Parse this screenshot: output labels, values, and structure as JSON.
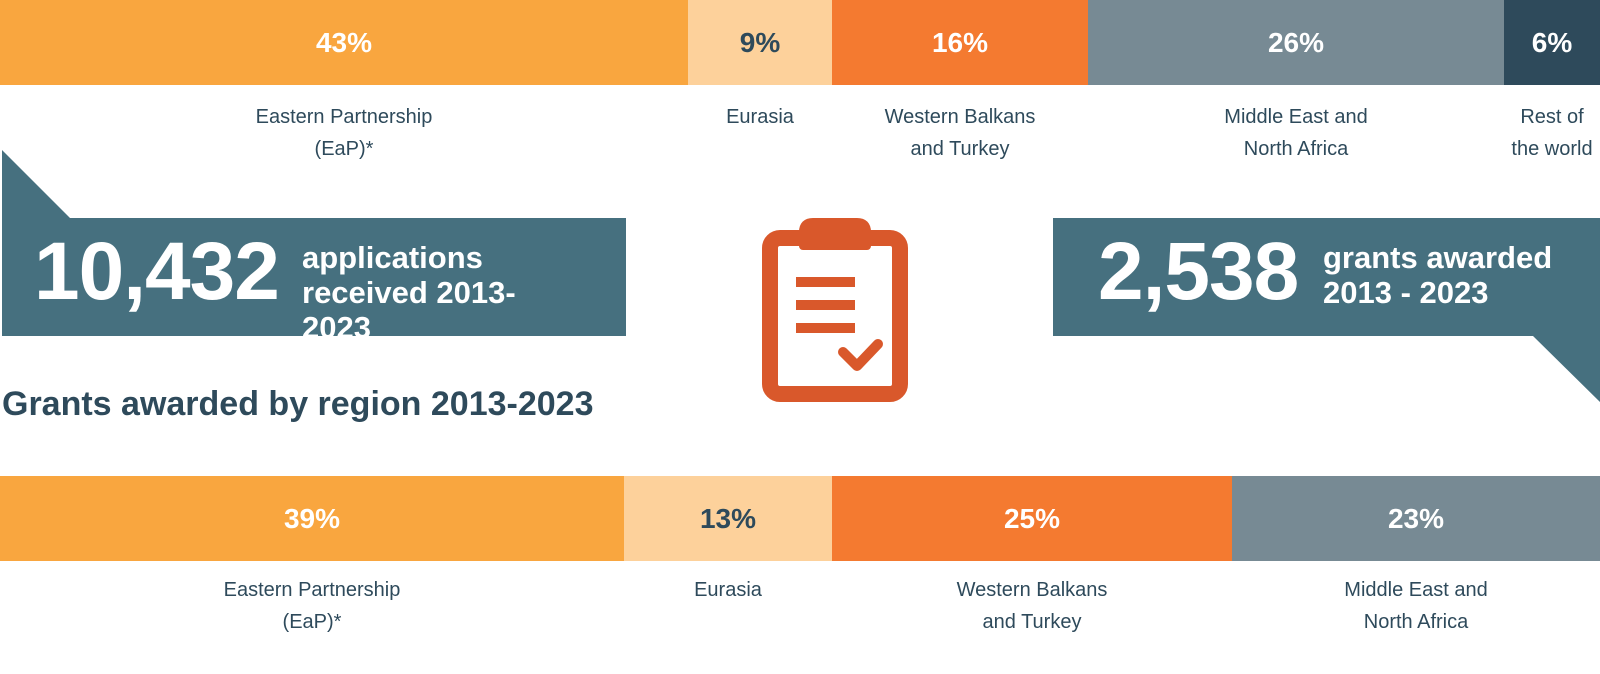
{
  "chart_data": [
    {
      "type": "stacked_bar",
      "categories": [
        "Eastern Partnership (EaP)*",
        "Eurasia",
        "Western Balkans and Turkey",
        "Middle East and North Africa",
        "Rest of the world"
      ],
      "values": [
        43,
        9,
        16,
        26,
        6
      ],
      "value_labels": [
        "43%",
        "9%",
        "16%",
        "26%",
        "6%"
      ],
      "colors": [
        "#f9a63f",
        "#fdd19b",
        "#f47a30",
        "#778a94",
        "#2e4a5b"
      ],
      "xlim": [
        0,
        100
      ]
    },
    {
      "type": "stacked_bar",
      "title": "Grants awarded by region 2013-2023",
      "categories": [
        "Eastern Partnership (EaP)*",
        "Eurasia",
        "Western Balkans and Turkey",
        "Middle East and North Africa"
      ],
      "values": [
        39,
        13,
        25,
        23
      ],
      "value_labels": [
        "39%",
        "13%",
        "25%",
        "23%"
      ],
      "colors": [
        "#f9a63f",
        "#fdd19b",
        "#f47a30",
        "#778a94"
      ],
      "xlim": [
        0,
        100
      ]
    }
  ],
  "stats": [
    {
      "number": "10,432",
      "label": "applications received 2013-2023"
    },
    {
      "number": "2,538",
      "label": "grants awarded 2013 - 2023"
    }
  ]
}
